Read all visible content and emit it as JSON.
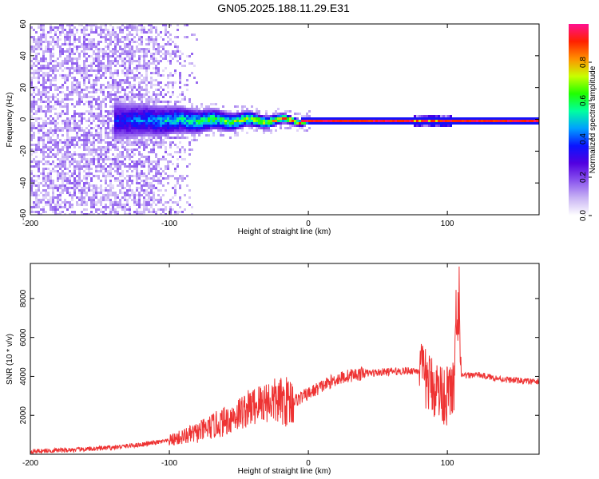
{
  "title": "GN05.2025.188.11.29.E31",
  "chart_data": [
    {
      "type": "heatmap",
      "xlabel": "Height of straight line (km)",
      "ylabel": "Frequency (Hz)",
      "xlim": [
        -200,
        166
      ],
      "ylim": [
        -60,
        60
      ],
      "xticks": [
        -200,
        -100,
        0,
        100
      ],
      "yticks": [
        -60,
        -40,
        -20,
        0,
        20,
        40,
        60
      ],
      "colorbar": {
        "label": "Normalized spectral amplitude",
        "ticks": [
          0.0,
          0.2,
          0.4,
          0.6,
          0.8
        ],
        "range": [
          0,
          1
        ],
        "colormap": [
          "#ffffff",
          "#c9b4f4",
          "#8a55ee",
          "#5200e0",
          "#0a14ff",
          "#00a0ff",
          "#00ffa0",
          "#20ff00",
          "#c8ff00",
          "#ff9000",
          "#ff2000",
          "#ff1090"
        ]
      },
      "features": [
        {
          "region": "broadband noise",
          "x": [
            -200,
            -80
          ],
          "freq": [
            -60,
            60
          ]
        },
        {
          "region": "converging band",
          "x": [
            -135,
            -5
          ],
          "freq_halfwidth_start": 12,
          "freq_halfwidth_end": 2
        },
        {
          "region": "strong narrow line at 0 Hz",
          "x": [
            0,
            166
          ],
          "freq": 0
        },
        {
          "region": "modulated segment",
          "x": [
            75,
            102
          ],
          "freq_halfwidth": 4
        }
      ]
    },
    {
      "type": "line",
      "xlabel": "Height of straight line (km)",
      "ylabel": "SNR (10 * v/v)",
      "xlim": [
        -200,
        166
      ],
      "ylim": [
        0,
        9800
      ],
      "xticks": [
        -200,
        -100,
        0,
        100
      ],
      "yticks": [
        2000,
        4000,
        6000,
        8000
      ],
      "color": "#ee3333",
      "series": [
        {
          "x": [
            -200,
            -180,
            -160,
            -140,
            -120,
            -100,
            -90,
            -80,
            -70,
            -60,
            -50,
            -40,
            -30,
            -20,
            -10,
            0,
            10,
            20,
            30,
            40,
            50,
            60,
            70,
            80,
            85,
            90,
            95,
            100,
            105,
            108,
            110,
            120,
            140,
            166
          ],
          "values": [
            150,
            200,
            250,
            350,
            500,
            700,
            900,
            1100,
            1400,
            1700,
            2100,
            2450,
            2750,
            2700,
            2750,
            3100,
            3500,
            3850,
            4050,
            4150,
            4200,
            4250,
            4280,
            4300,
            3800,
            3500,
            3200,
            3000,
            3500,
            9700,
            4000,
            4100,
            3850,
            3700
          ]
        }
      ]
    }
  ]
}
